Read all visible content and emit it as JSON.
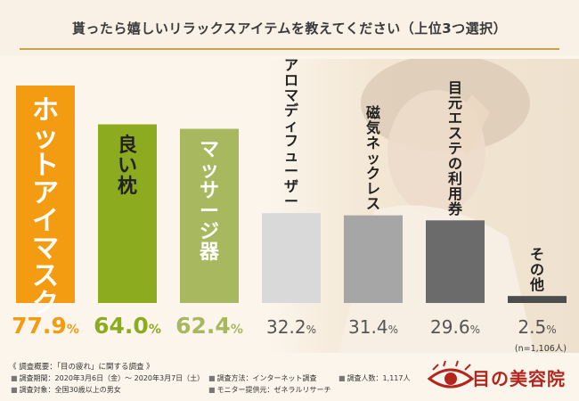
{
  "title": "貰ったら嬉しいリラックスアイテムを教えてください（上位3つ選択）",
  "chart_data": {
    "type": "bar",
    "categories": [
      "ホットアイマスク",
      "良い枕",
      "マッサージ器",
      "アロマディフューザー",
      "磁気ネックレス",
      "目元エステの利用券",
      "その他"
    ],
    "values": [
      77.9,
      64.0,
      62.4,
      32.2,
      31.4,
      29.6,
      2.5
    ],
    "value_labels": [
      "77.9",
      "64.0",
      "62.4",
      "32.2",
      "31.4",
      "29.6",
      "2.5"
    ],
    "unit": "%",
    "ylim": [
      0,
      100
    ],
    "colors": [
      "#f39c12",
      "#8cab1f",
      "#a7b85e",
      "#d9d9d9",
      "#a6a6a6",
      "#6b6b6b",
      "#4d4d4d"
    ],
    "value_colors": [
      "#f39c12",
      "#8cab1f",
      "#a7b85e",
      "#555555",
      "#555555",
      "#555555",
      "#555555"
    ],
    "label_colors": [
      "#ffffff",
      "#222222",
      "#ffffff",
      "#222222",
      "#222222",
      "#222222",
      "#222222"
    ],
    "label_positions": [
      "inside",
      "inside",
      "inside",
      "above",
      "above",
      "above",
      "above"
    ]
  },
  "sample": "(n=1,106人)",
  "survey": {
    "title": "《 調査概要：「目の疲れ」に関する調査 》",
    "period": "調査期間：2020年3月6日（金）～ 2020年3月7日（土）",
    "target": "調査対象：全国30歳以上の男女",
    "method": "調査方法：インターネット調査",
    "provider": "モニター提供元：ゼネラルリサーチ",
    "count": "調査人数：1,117人",
    "dot": "■"
  },
  "logo": {
    "text": "目の美容院",
    "icon": "eye-logo-icon"
  }
}
